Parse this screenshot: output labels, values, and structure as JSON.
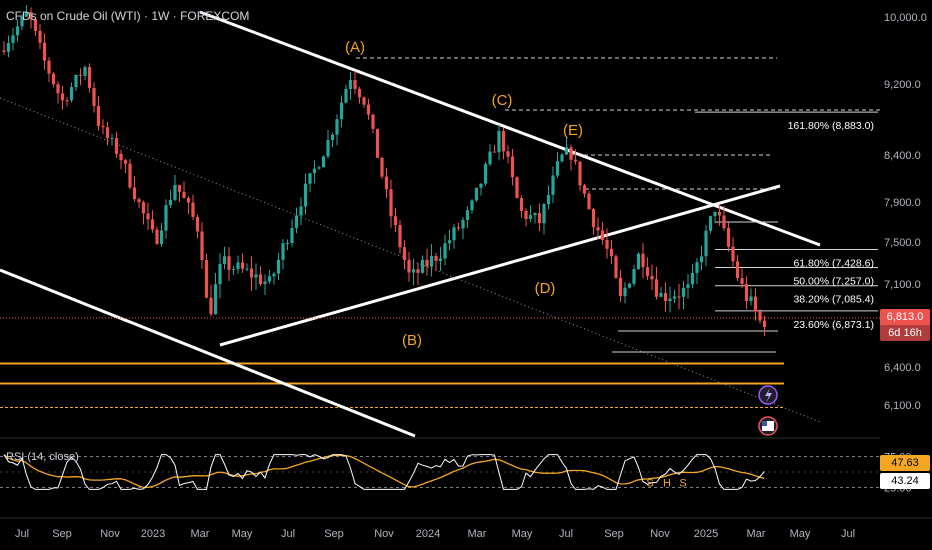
{
  "header": {
    "symbol": "CFDs on Crude Oil (WTI)",
    "sep1": "·",
    "interval": "1W",
    "sep2": "·",
    "exchange": "FOREXCOM"
  },
  "colors": {
    "background": "#000000",
    "up": "#26a69a",
    "down": "#ef5350",
    "trendline": "#ffffff",
    "wave_label": "#f5a623",
    "support": "#f5a623",
    "rsi_line": "#ffffff",
    "rsi_ma": "#f5a623",
    "price_tag": "#ef5350",
    "axis_text": "#b2b5be"
  },
  "chart_data": {
    "type": "candlestick",
    "y_axis": {
      "ticks": [
        "10,000.0",
        "9,200.0",
        "8,400.0",
        "7,900.0",
        "7,500.0",
        "7,100.0",
        "6,400.0",
        "6,100.0"
      ],
      "range": [
        5750,
        10100
      ]
    },
    "x_axis": {
      "ticks": [
        "Jul",
        "Sep",
        "Nov",
        "2023",
        "Mar",
        "May",
        "Jul",
        "Sep",
        "Nov",
        "2024",
        "Mar",
        "May",
        "Jul",
        "Sep",
        "Nov",
        "2025",
        "Mar",
        "May",
        "Jul"
      ]
    },
    "current_price": {
      "value": "6,813.0",
      "countdown": "6d 16h"
    },
    "wave_labels": [
      "(A)",
      "(B)",
      "(C)",
      "(D)",
      "(E)"
    ],
    "fibonacci": [
      {
        "label": "161.80% (8,883.0)",
        "level": 8883.0
      },
      {
        "label": "61.80% (7,428.6)",
        "level": 7428.6
      },
      {
        "label": "50.00% (7,257.0)",
        "level": 7257.0
      },
      {
        "label": "38.20% (7,085.4)",
        "level": 7085.4
      },
      {
        "label": "23.60% (6,873.1)",
        "level": 6873.1
      }
    ],
    "support_lines": [
      6430,
      6270,
      6080
    ],
    "rsi": {
      "label": "RSI (14, close)",
      "value": "47.63",
      "ma_value": "43.24",
      "ticks": [
        "75.00",
        "25.00"
      ],
      "pattern_labels": [
        "S",
        "H",
        "S"
      ]
    }
  }
}
